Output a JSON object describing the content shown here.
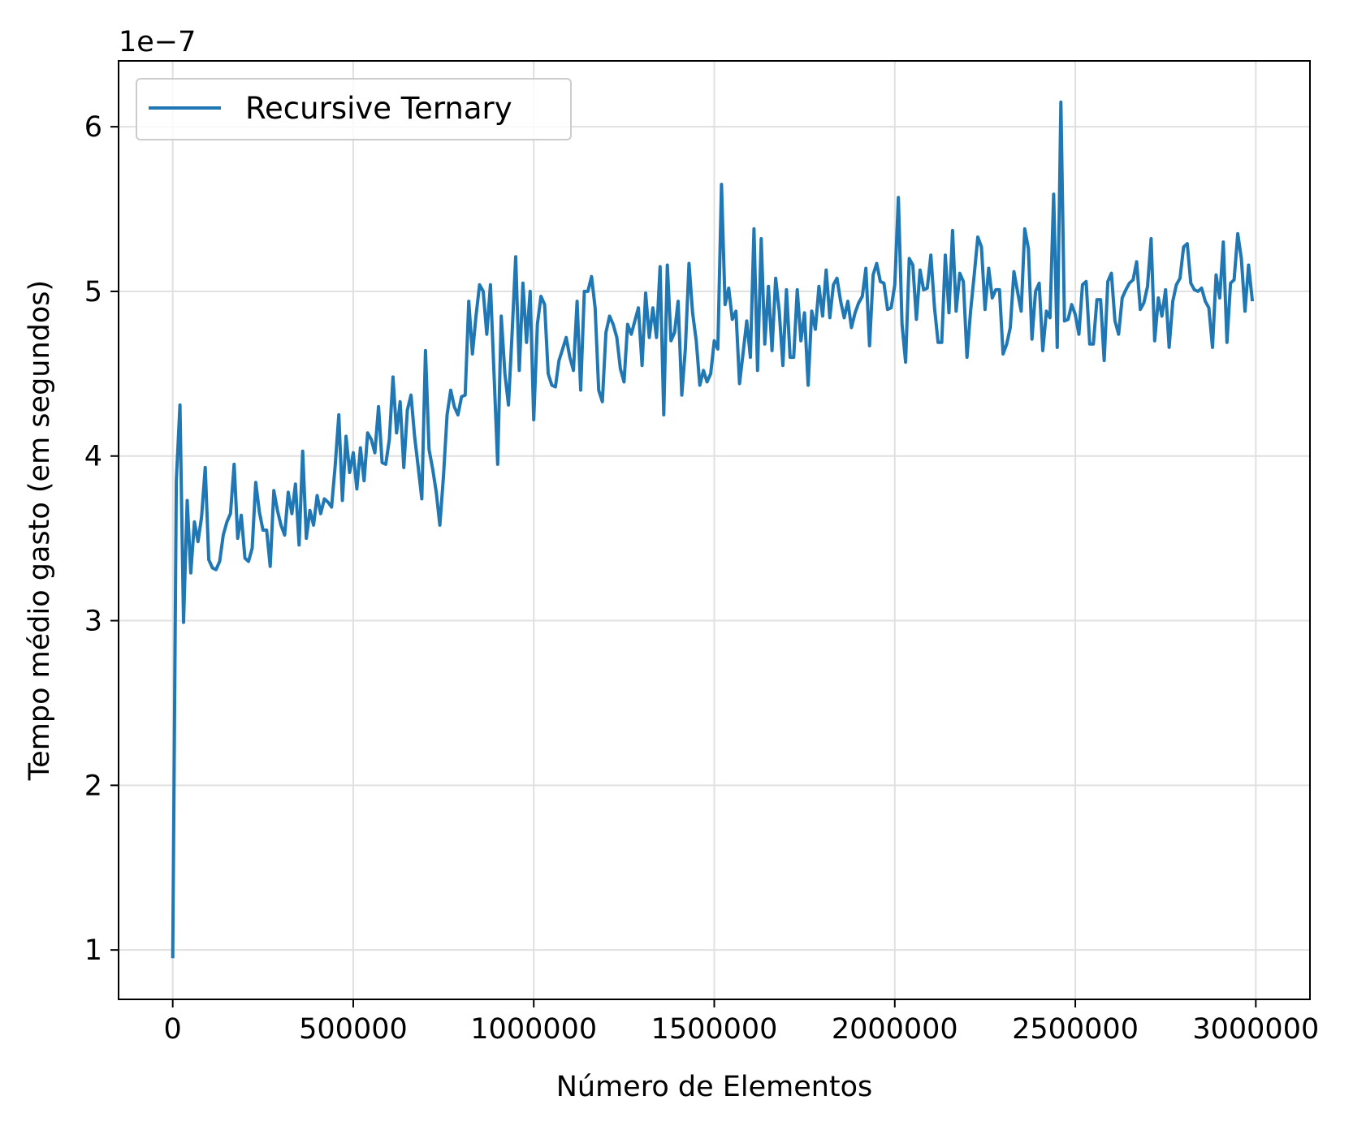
{
  "chart_data": {
    "type": "line",
    "xlabel": "Número de Elementos",
    "ylabel": "Tempo médio gasto (em segundos)",
    "y_offset_label": "1e−7",
    "y_scale": 1e-07,
    "xlim": [
      -150000,
      3150000
    ],
    "ylim": [
      0.7,
      6.4
    ],
    "xticks": [
      0,
      500000,
      1000000,
      1500000,
      2000000,
      2500000,
      3000000
    ],
    "xtick_labels": [
      "0",
      "500000",
      "1000000",
      "1500000",
      "2000000",
      "2500000",
      "3000000"
    ],
    "yticks": [
      1,
      2,
      3,
      4,
      5,
      6
    ],
    "ytick_labels": [
      "1",
      "2",
      "3",
      "4",
      "5",
      "6"
    ],
    "grid": true,
    "legend_position": "top-left",
    "colors": {
      "series": "#1f77b4",
      "grid": "#e0e0e0",
      "axis": "#000000"
    },
    "series": [
      {
        "name": "Recursive Ternary",
        "x": [
          0,
          10000,
          20000,
          30000,
          40000,
          50000,
          60000,
          70000,
          80000,
          90000,
          100000,
          110000,
          120000,
          130000,
          140000,
          150000,
          160000,
          170000,
          180000,
          190000,
          200000,
          210000,
          220000,
          230000,
          240000,
          250000,
          260000,
          270000,
          280000,
          290000,
          300000,
          310000,
          320000,
          330000,
          340000,
          350000,
          360000,
          370000,
          380000,
          390000,
          400000,
          410000,
          420000,
          430000,
          440000,
          450000,
          460000,
          470000,
          480000,
          490000,
          500000,
          510000,
          520000,
          530000,
          540000,
          550000,
          560000,
          570000,
          580000,
          590000,
          600000,
          610000,
          620000,
          630000,
          640000,
          650000,
          660000,
          670000,
          680000,
          690000,
          700000,
          710000,
          720000,
          730000,
          740000,
          750000,
          760000,
          770000,
          780000,
          790000,
          800000,
          810000,
          820000,
          830000,
          840000,
          850000,
          860000,
          870000,
          880000,
          890000,
          900000,
          910000,
          920000,
          930000,
          940000,
          950000,
          960000,
          970000,
          980000,
          990000,
          1000000,
          1010000,
          1020000,
          1030000,
          1040000,
          1050000,
          1060000,
          1070000,
          1080000,
          1090000,
          1100000,
          1110000,
          1120000,
          1130000,
          1140000,
          1150000,
          1160000,
          1170000,
          1180000,
          1190000,
          1200000,
          1210000,
          1220000,
          1230000,
          1240000,
          1250000,
          1260000,
          1270000,
          1280000,
          1290000,
          1300000,
          1310000,
          1320000,
          1330000,
          1340000,
          1350000,
          1360000,
          1370000,
          1380000,
          1390000,
          1400000,
          1410000,
          1420000,
          1430000,
          1440000,
          1450000,
          1460000,
          1470000,
          1480000,
          1490000,
          1500000,
          1510000,
          1520000,
          1530000,
          1540000,
          1550000,
          1560000,
          1570000,
          1580000,
          1590000,
          1600000,
          1610000,
          1620000,
          1630000,
          1640000,
          1650000,
          1660000,
          1670000,
          1680000,
          1690000,
          1700000,
          1710000,
          1720000,
          1730000,
          1740000,
          1750000,
          1760000,
          1770000,
          1780000,
          1790000,
          1800000,
          1810000,
          1820000,
          1830000,
          1840000,
          1850000,
          1860000,
          1870000,
          1880000,
          1890000,
          1900000,
          1910000,
          1920000,
          1930000,
          1940000,
          1950000,
          1960000,
          1970000,
          1980000,
          1990000,
          2000000,
          2010000,
          2020000,
          2030000,
          2040000,
          2050000,
          2060000,
          2070000,
          2080000,
          2090000,
          2100000,
          2110000,
          2120000,
          2130000,
          2140000,
          2150000,
          2160000,
          2170000,
          2180000,
          2190000,
          2200000,
          2210000,
          2220000,
          2230000,
          2240000,
          2250000,
          2260000,
          2270000,
          2280000,
          2290000,
          2300000,
          2310000,
          2320000,
          2330000,
          2340000,
          2350000,
          2360000,
          2370000,
          2380000,
          2390000,
          2400000,
          2410000,
          2420000,
          2430000,
          2440000,
          2450000,
          2460000,
          2470000,
          2480000,
          2490000,
          2500000,
          2510000,
          2520000,
          2530000,
          2540000,
          2550000,
          2560000,
          2570000,
          2580000,
          2590000,
          2600000,
          2610000,
          2620000,
          2630000,
          2640000,
          2650000,
          2660000,
          2670000,
          2680000,
          2690000,
          2700000,
          2710000,
          2720000,
          2730000,
          2740000,
          2750000,
          2760000,
          2770000,
          2780000,
          2790000,
          2800000,
          2810000,
          2820000,
          2830000,
          2840000,
          2850000,
          2860000,
          2870000,
          2880000,
          2890000,
          2900000,
          2910000,
          2920000,
          2930000,
          2940000,
          2950000,
          2960000,
          2970000,
          2980000,
          2990000
        ],
        "y": [
          0.96,
          3.85,
          4.31,
          2.99,
          3.73,
          3.29,
          3.6,
          3.48,
          3.63,
          3.93,
          3.37,
          3.32,
          3.31,
          3.36,
          3.52,
          3.6,
          3.65,
          3.95,
          3.5,
          3.64,
          3.38,
          3.36,
          3.44,
          3.84,
          3.66,
          3.55,
          3.55,
          3.33,
          3.79,
          3.67,
          3.58,
          3.52,
          3.78,
          3.65,
          3.83,
          3.46,
          4.03,
          3.5,
          3.67,
          3.58,
          3.76,
          3.65,
          3.74,
          3.72,
          3.69,
          3.94,
          4.25,
          3.73,
          4.12,
          3.9,
          4.02,
          3.8,
          4.05,
          3.85,
          4.14,
          4.1,
          4.02,
          4.3,
          3.96,
          3.95,
          4.1,
          4.48,
          4.14,
          4.33,
          3.93,
          4.28,
          4.37,
          4.12,
          3.93,
          3.74,
          4.64,
          4.04,
          3.92,
          3.78,
          3.58,
          3.88,
          4.25,
          4.4,
          4.3,
          4.25,
          4.36,
          4.37,
          4.94,
          4.62,
          4.85,
          5.04,
          5.0,
          4.74,
          5.04,
          4.5,
          3.95,
          4.85,
          4.5,
          4.31,
          4.75,
          5.21,
          4.52,
          5.05,
          4.69,
          5.0,
          4.22,
          4.8,
          4.97,
          4.92,
          4.5,
          4.43,
          4.42,
          4.58,
          4.65,
          4.72,
          4.6,
          4.52,
          4.94,
          4.4,
          5.0,
          5.0,
          5.09,
          4.9,
          4.4,
          4.33,
          4.75,
          4.85,
          4.8,
          4.72,
          4.53,
          4.45,
          4.8,
          4.74,
          4.82,
          4.9,
          4.55,
          4.99,
          4.72,
          4.9,
          4.72,
          5.15,
          4.25,
          5.16,
          4.7,
          4.75,
          4.94,
          4.37,
          4.65,
          5.17,
          4.87,
          4.7,
          4.43,
          4.52,
          4.45,
          4.5,
          4.7,
          4.65,
          5.65,
          4.92,
          5.02,
          4.83,
          4.88,
          4.44,
          4.63,
          4.82,
          4.6,
          5.38,
          4.52,
          5.32,
          4.68,
          5.03,
          4.64,
          5.08,
          4.88,
          4.55,
          5.01,
          4.6,
          4.6,
          5.01,
          4.7,
          4.87,
          4.43,
          4.88,
          4.77,
          5.03,
          4.85,
          5.13,
          4.84,
          5.04,
          5.08,
          4.94,
          4.84,
          4.94,
          4.78,
          4.87,
          4.93,
          4.97,
          5.14,
          4.67,
          5.1,
          5.17,
          5.06,
          5.05,
          4.89,
          4.9,
          5.04,
          5.57,
          4.8,
          4.57,
          5.2,
          5.16,
          4.83,
          5.13,
          5.01,
          5.02,
          5.22,
          4.9,
          4.69,
          4.69,
          5.22,
          4.87,
          5.37,
          4.88,
          5.11,
          5.06,
          4.6,
          4.88,
          5.1,
          5.33,
          5.27,
          4.89,
          5.14,
          4.96,
          5.01,
          5.01,
          4.62,
          4.68,
          4.78,
          5.12,
          5.0,
          4.88,
          5.38,
          5.26,
          4.71,
          5.0,
          5.05,
          4.64,
          4.88,
          4.84,
          5.59,
          4.66,
          6.15,
          4.82,
          4.83,
          4.92,
          4.86,
          4.74,
          5.04,
          5.06,
          4.68,
          4.68,
          4.95,
          4.95,
          4.58,
          5.06,
          5.11,
          4.82,
          4.74,
          4.96,
          5.01,
          5.05,
          5.07,
          5.18,
          4.89,
          4.93,
          5.03,
          5.32,
          4.7,
          4.96,
          4.85,
          5.01,
          4.66,
          4.94,
          5.04,
          5.08,
          5.27,
          5.29,
          5.05,
          5.01,
          5.0,
          5.02,
          4.94,
          4.9,
          4.66,
          5.1,
          4.96,
          5.3,
          4.69,
          5.05,
          5.07,
          5.35,
          5.2,
          4.88,
          5.16,
          4.95
        ]
      }
    ]
  }
}
